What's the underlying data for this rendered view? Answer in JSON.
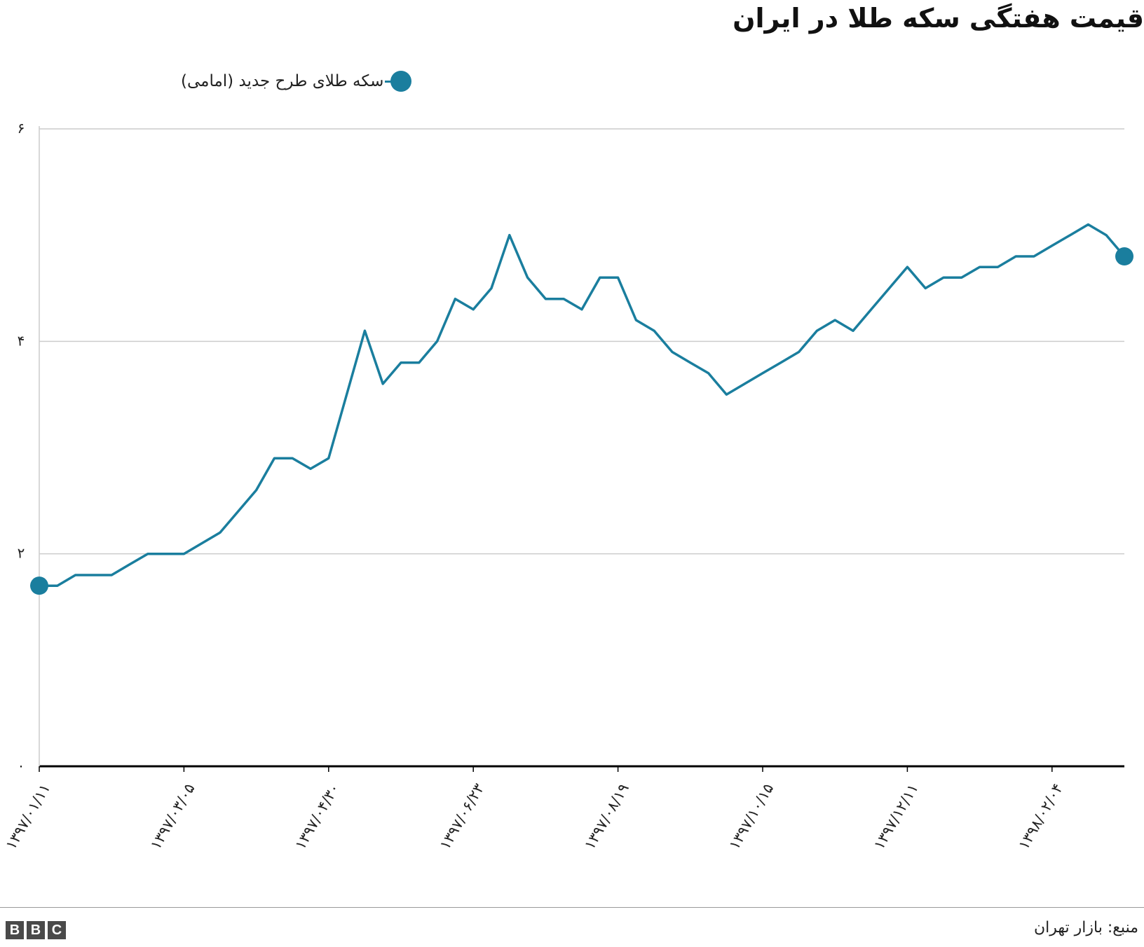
{
  "title": "قیمت هفتگی سکه طلا در ایران",
  "legend": {
    "label": "سکه طلای طرح جدید (امامی)",
    "icon": "circle-marker-icon"
  },
  "footer": {
    "source": "منبع: بازار تهران",
    "logo": [
      "B",
      "B",
      "C"
    ]
  },
  "colors": {
    "series": "#1a7e9e",
    "grid": "#cccccc",
    "baseline": "#000000"
  },
  "chart_data": {
    "type": "line",
    "title": "قیمت هفتگی سکه طلا در ایران",
    "xlabel": "",
    "ylabel": "",
    "ylim": [
      0,
      6
    ],
    "yticks": [
      0,
      2,
      4,
      6
    ],
    "ytick_labels": [
      "۰",
      "۲",
      "۴",
      "۶"
    ],
    "xtick_labels": [
      "۱۳۹۷/۰۱/۱۱",
      "۱۳۹۷/۰۳/۰۵",
      "۱۳۹۷/۰۴/۳۰",
      "۱۳۹۷/۰۶/۲۳",
      "۱۳۹۷/۰۸/۱۹",
      "۱۳۹۷/۱۰/۱۵",
      "۱۳۹۷/۱۲/۱۱",
      "۱۳۹۸/۰۲/۰۴"
    ],
    "xtick_index": [
      0,
      8,
      16,
      24,
      32,
      40,
      48,
      56
    ],
    "grid": true,
    "legend_position": "top",
    "series": [
      {
        "name": "سکه طلای طرح جدید (امامی)",
        "values": [
          1.7,
          1.7,
          1.8,
          1.8,
          1.8,
          1.9,
          2.0,
          2.0,
          2.0,
          2.1,
          2.2,
          2.4,
          2.6,
          2.9,
          2.9,
          2.8,
          2.9,
          3.5,
          4.1,
          3.6,
          3.8,
          3.8,
          4.0,
          4.4,
          4.3,
          4.5,
          5.0,
          4.6,
          4.4,
          4.4,
          4.3,
          4.6,
          4.6,
          4.2,
          4.1,
          3.9,
          3.8,
          3.7,
          3.5,
          3.6,
          3.7,
          3.8,
          3.9,
          4.1,
          4.2,
          4.1,
          4.3,
          4.5,
          4.7,
          4.5,
          4.6,
          4.6,
          4.7,
          4.7,
          4.8,
          4.8,
          4.9,
          5.0,
          5.1,
          5.0,
          4.8
        ]
      }
    ]
  }
}
